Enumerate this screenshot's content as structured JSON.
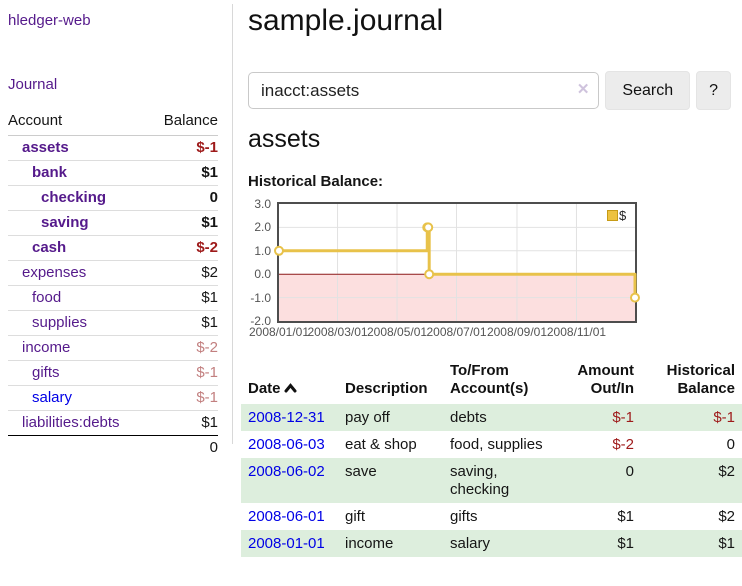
{
  "app": {
    "title": "hledger-web",
    "nav_journal": "Journal"
  },
  "sidebar": {
    "header": {
      "account": "Account",
      "balance": "Balance"
    },
    "accounts": [
      {
        "name": "assets",
        "balance": "$-1",
        "depth": 1,
        "in_query": true,
        "unvisited": false
      },
      {
        "name": "bank",
        "balance": "$1",
        "depth": 2,
        "in_query": true,
        "unvisited": false
      },
      {
        "name": "checking",
        "balance": "0",
        "depth": 3,
        "in_query": true,
        "unvisited": false
      },
      {
        "name": "saving",
        "balance": "$1",
        "depth": 3,
        "in_query": true,
        "unvisited": false
      },
      {
        "name": "cash",
        "balance": "$-2",
        "depth": 2,
        "in_query": true,
        "unvisited": false
      },
      {
        "name": "expenses",
        "balance": "$2",
        "depth": 1,
        "in_query": false,
        "unvisited": false
      },
      {
        "name": "food",
        "balance": "$1",
        "depth": 2,
        "in_query": false,
        "unvisited": false
      },
      {
        "name": "supplies",
        "balance": "$1",
        "depth": 2,
        "in_query": false,
        "unvisited": false
      },
      {
        "name": "income",
        "balance": "$-2",
        "depth": 1,
        "in_query": false,
        "unvisited": false
      },
      {
        "name": "gifts",
        "balance": "$-1",
        "depth": 2,
        "in_query": false,
        "unvisited": false
      },
      {
        "name": "salary",
        "balance": "$-1",
        "depth": 2,
        "in_query": false,
        "unvisited": true
      },
      {
        "name": "liabilities:debts",
        "balance": "$1",
        "depth": 1,
        "in_query": false,
        "unvisited": false
      }
    ],
    "total": "0"
  },
  "main": {
    "title": "sample.journal",
    "search": {
      "value": "inacct:assets",
      "clear_icon": "✕",
      "search_label": "Search",
      "help_label": "?"
    },
    "account_heading": "assets",
    "chart_label": "Historical Balance:"
  },
  "chart_data": {
    "type": "line",
    "title": "Historical Balance",
    "step": true,
    "series": [
      {
        "name": "$",
        "points": [
          [
            "2008-01-01",
            1
          ],
          [
            "2008-06-01",
            2
          ],
          [
            "2008-06-02",
            2
          ],
          [
            "2008-06-03",
            0
          ],
          [
            "2008-12-31",
            -1
          ]
        ]
      }
    ],
    "x_range": [
      "2008-01-01",
      "2008-12-31"
    ],
    "x_ticks": [
      "2008/01/01",
      "2008/03/01",
      "2008/05/01",
      "2008/07/01",
      "2008/09/01",
      "2008/11/01"
    ],
    "y_ticks": [
      "3.0",
      "2.0",
      "1.0",
      "0.0",
      "-1.0",
      "-2.0"
    ],
    "ylim": [
      -2,
      3
    ],
    "grid": true,
    "legend_position": "top-right",
    "colors": {
      "series": "#e8c24a",
      "point_fill": "#ffffff",
      "negative_fill": "#fcdfdf",
      "zero_line": "#8b1a1a",
      "grid": "#e2e2e2",
      "border": "#4d4d4d"
    }
  },
  "register": {
    "headers": {
      "date": "Date",
      "description": "Description",
      "accounts": "To/From Account(s)",
      "amount": "Amount Out/In",
      "balance": "Historical Balance"
    },
    "rows": [
      {
        "date": "2008-12-31",
        "description": "pay off",
        "accounts": [
          "debts"
        ],
        "amount": "$-1",
        "balance": "$-1"
      },
      {
        "date": "2008-06-03",
        "description": "eat & shop",
        "accounts": [
          "food",
          "supplies"
        ],
        "amount": "$-2",
        "balance": "0"
      },
      {
        "date": "2008-06-02",
        "description": "save",
        "accounts": [
          "saving",
          "checking"
        ],
        "amount": "0",
        "balance": "$2"
      },
      {
        "date": "2008-06-01",
        "description": "gift",
        "accounts": [
          "gifts"
        ],
        "amount": "$1",
        "balance": "$2"
      },
      {
        "date": "2008-01-01",
        "description": "income",
        "accounts": [
          "salary"
        ],
        "amount": "$1",
        "balance": "$1"
      }
    ]
  }
}
